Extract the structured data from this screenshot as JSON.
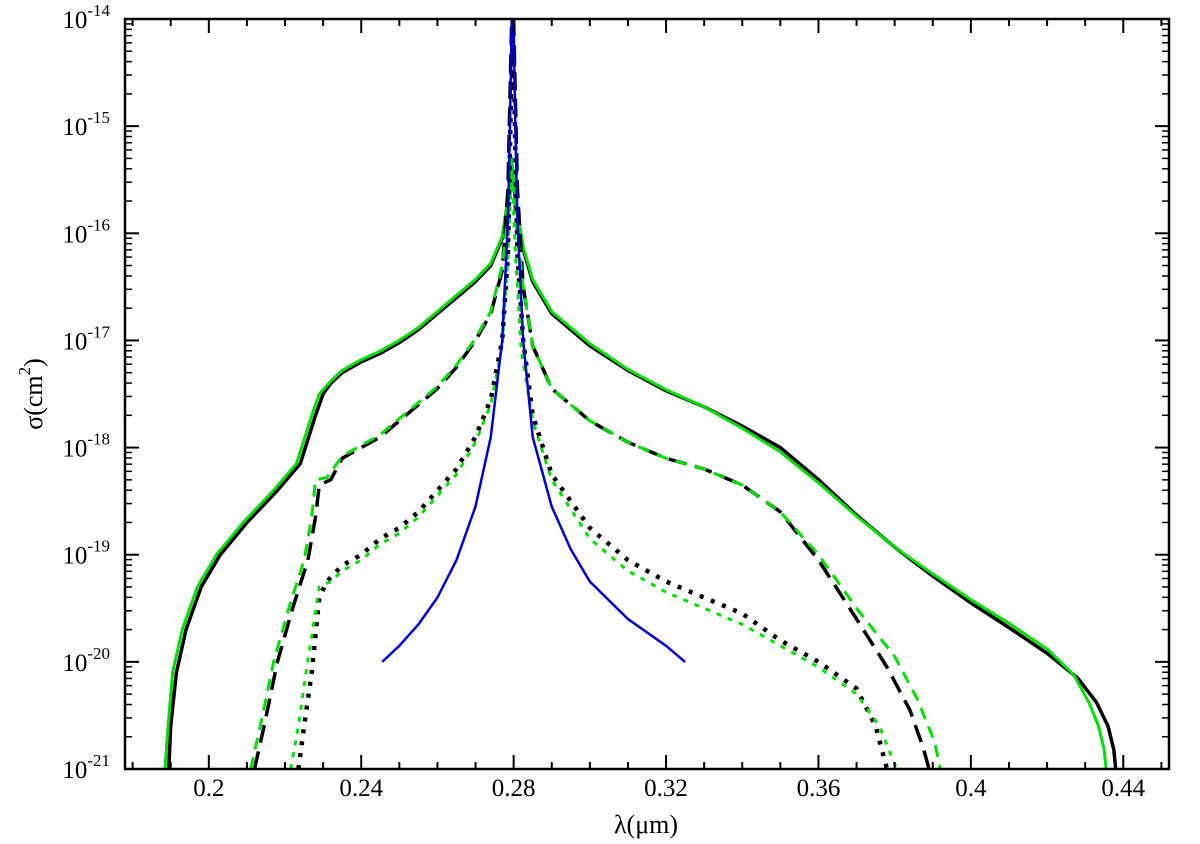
{
  "chart_data": {
    "type": "line",
    "xlabel": "λ(μm)",
    "ylabel": {
      "base": "σ(cm",
      "sup": "2",
      "tail": ")"
    },
    "xlim": [
      0.178,
      0.452
    ],
    "ylim": [
      -21,
      -14
    ],
    "yscale": "log",
    "x_ticks": [
      {
        "value": 0.2,
        "label": "0.2"
      },
      {
        "value": 0.24,
        "label": "0.24"
      },
      {
        "value": 0.28,
        "label": "0.28"
      },
      {
        "value": 0.32,
        "label": "0.32"
      },
      {
        "value": 0.36,
        "label": "0.36"
      },
      {
        "value": 0.4,
        "label": "0.4"
      },
      {
        "value": 0.44,
        "label": "0.44"
      }
    ],
    "y_ticks": [
      {
        "value": -14,
        "base": "10",
        "exp": "-14"
      },
      {
        "value": -15,
        "base": "10",
        "exp": "-15"
      },
      {
        "value": -16,
        "base": "10",
        "exp": "-16"
      },
      {
        "value": -17,
        "base": "10",
        "exp": "-17"
      },
      {
        "value": -18,
        "base": "10",
        "exp": "-18"
      },
      {
        "value": -19,
        "base": "10",
        "exp": "-19"
      },
      {
        "value": -20,
        "base": "10",
        "exp": "-20"
      },
      {
        "value": -21,
        "base": "10",
        "exp": "-21"
      }
    ],
    "grid": false,
    "series": [
      {
        "color": "#000000",
        "dash": "solid",
        "width": 3.5,
        "points": [
          [
            0.1895,
            -21
          ],
          [
            0.19,
            -20.6
          ],
          [
            0.1915,
            -20.1
          ],
          [
            0.194,
            -19.7
          ],
          [
            0.198,
            -19.3
          ],
          [
            0.203,
            -19.0
          ],
          [
            0.21,
            -18.7
          ],
          [
            0.218,
            -18.4
          ],
          [
            0.224,
            -18.15
          ],
          [
            0.228,
            -17.7
          ],
          [
            0.23,
            -17.5
          ],
          [
            0.232,
            -17.4
          ],
          [
            0.235,
            -17.3
          ],
          [
            0.24,
            -17.2
          ],
          [
            0.245,
            -17.12
          ],
          [
            0.25,
            -17.02
          ],
          [
            0.255,
            -16.9
          ],
          [
            0.26,
            -16.75
          ],
          [
            0.265,
            -16.6
          ],
          [
            0.27,
            -16.45
          ],
          [
            0.274,
            -16.3
          ],
          [
            0.277,
            -16.05
          ],
          [
            0.2785,
            -15.7
          ],
          [
            0.2795,
            -15.35
          ],
          [
            0.2805,
            -15.7
          ],
          [
            0.2825,
            -16.15
          ],
          [
            0.285,
            -16.45
          ],
          [
            0.29,
            -16.75
          ],
          [
            0.3,
            -17.05
          ],
          [
            0.31,
            -17.28
          ],
          [
            0.32,
            -17.47
          ],
          [
            0.33,
            -17.62
          ],
          [
            0.34,
            -17.8
          ],
          [
            0.35,
            -18.0
          ],
          [
            0.36,
            -18.3
          ],
          [
            0.37,
            -18.63
          ],
          [
            0.38,
            -18.93
          ],
          [
            0.39,
            -19.2
          ],
          [
            0.4,
            -19.45
          ],
          [
            0.41,
            -19.68
          ],
          [
            0.42,
            -19.92
          ],
          [
            0.428,
            -20.15
          ],
          [
            0.433,
            -20.38
          ],
          [
            0.436,
            -20.6
          ],
          [
            0.4375,
            -20.82
          ],
          [
            0.438,
            -21
          ]
        ]
      },
      {
        "color": "#00dd00",
        "dash": "solid",
        "width": 3,
        "points": [
          [
            0.1885,
            -21
          ],
          [
            0.1893,
            -20.6
          ],
          [
            0.1905,
            -20.1
          ],
          [
            0.193,
            -19.7
          ],
          [
            0.197,
            -19.3
          ],
          [
            0.202,
            -19.0
          ],
          [
            0.209,
            -18.7
          ],
          [
            0.217,
            -18.4
          ],
          [
            0.223,
            -18.15
          ],
          [
            0.227,
            -17.7
          ],
          [
            0.229,
            -17.5
          ],
          [
            0.232,
            -17.38
          ],
          [
            0.235,
            -17.28
          ],
          [
            0.24,
            -17.18
          ],
          [
            0.245,
            -17.1
          ],
          [
            0.25,
            -17.0
          ],
          [
            0.255,
            -16.88
          ],
          [
            0.26,
            -16.73
          ],
          [
            0.265,
            -16.58
          ],
          [
            0.27,
            -16.43
          ],
          [
            0.274,
            -16.28
          ],
          [
            0.277,
            -16.03
          ],
          [
            0.2785,
            -15.7
          ],
          [
            0.2795,
            -15.3
          ],
          [
            0.2805,
            -15.68
          ],
          [
            0.2825,
            -16.13
          ],
          [
            0.285,
            -16.43
          ],
          [
            0.29,
            -16.73
          ],
          [
            0.3,
            -17.03
          ],
          [
            0.31,
            -17.27
          ],
          [
            0.32,
            -17.46
          ],
          [
            0.33,
            -17.62
          ],
          [
            0.34,
            -17.82
          ],
          [
            0.35,
            -18.04
          ],
          [
            0.36,
            -18.33
          ],
          [
            0.37,
            -18.64
          ],
          [
            0.38,
            -18.93
          ],
          [
            0.39,
            -19.18
          ],
          [
            0.4,
            -19.42
          ],
          [
            0.41,
            -19.64
          ],
          [
            0.42,
            -19.88
          ],
          [
            0.427,
            -20.12
          ],
          [
            0.431,
            -20.38
          ],
          [
            0.4335,
            -20.6
          ],
          [
            0.435,
            -20.82
          ],
          [
            0.4355,
            -21
          ]
        ]
      },
      {
        "color": "#000000",
        "dash": "18,9",
        "width": 3.5,
        "points": [
          [
            0.212,
            -21
          ],
          [
            0.2145,
            -20.6
          ],
          [
            0.218,
            -20.0
          ],
          [
            0.222,
            -19.5
          ],
          [
            0.226,
            -19.05
          ],
          [
            0.228,
            -18.65
          ],
          [
            0.229,
            -18.35
          ],
          [
            0.232,
            -18.3
          ],
          [
            0.235,
            -18.1
          ],
          [
            0.24,
            -18.0
          ],
          [
            0.245,
            -17.9
          ],
          [
            0.25,
            -17.75
          ],
          [
            0.255,
            -17.6
          ],
          [
            0.26,
            -17.45
          ],
          [
            0.265,
            -17.25
          ],
          [
            0.27,
            -17.0
          ],
          [
            0.274,
            -16.75
          ],
          [
            0.277,
            -16.35
          ],
          [
            0.2785,
            -15.6
          ],
          [
            0.279,
            -14.8
          ],
          [
            0.2795,
            -14.0
          ],
          [
            0.28,
            -14.0
          ],
          [
            0.2805,
            -14.8
          ],
          [
            0.281,
            -15.6
          ],
          [
            0.2825,
            -16.5
          ],
          [
            0.285,
            -17.05
          ],
          [
            0.29,
            -17.45
          ],
          [
            0.3,
            -17.75
          ],
          [
            0.31,
            -17.95
          ],
          [
            0.32,
            -18.1
          ],
          [
            0.33,
            -18.2
          ],
          [
            0.34,
            -18.35
          ],
          [
            0.35,
            -18.6
          ],
          [
            0.36,
            -19.05
          ],
          [
            0.37,
            -19.6
          ],
          [
            0.378,
            -20.05
          ],
          [
            0.384,
            -20.45
          ],
          [
            0.3875,
            -20.8
          ],
          [
            0.389,
            -21
          ]
        ]
      },
      {
        "color": "#00dd00",
        "dash": "12,8",
        "width": 3,
        "points": [
          [
            0.211,
            -21
          ],
          [
            0.2135,
            -20.6
          ],
          [
            0.217,
            -20.0
          ],
          [
            0.221,
            -19.5
          ],
          [
            0.225,
            -19.05
          ],
          [
            0.227,
            -18.65
          ],
          [
            0.228,
            -18.3
          ],
          [
            0.231,
            -18.28
          ],
          [
            0.235,
            -18.08
          ],
          [
            0.24,
            -17.98
          ],
          [
            0.245,
            -17.88
          ],
          [
            0.25,
            -17.73
          ],
          [
            0.255,
            -17.58
          ],
          [
            0.26,
            -17.43
          ],
          [
            0.265,
            -17.23
          ],
          [
            0.27,
            -16.98
          ],
          [
            0.274,
            -16.73
          ],
          [
            0.277,
            -16.3
          ],
          [
            0.2785,
            -15.85
          ],
          [
            0.2795,
            -15.4
          ],
          [
            0.2805,
            -15.85
          ],
          [
            0.2825,
            -16.5
          ],
          [
            0.285,
            -17.05
          ],
          [
            0.29,
            -17.45
          ],
          [
            0.3,
            -17.75
          ],
          [
            0.31,
            -17.95
          ],
          [
            0.32,
            -18.1
          ],
          [
            0.33,
            -18.2
          ],
          [
            0.34,
            -18.35
          ],
          [
            0.35,
            -18.6
          ],
          [
            0.36,
            -19.0
          ],
          [
            0.37,
            -19.5
          ],
          [
            0.38,
            -19.95
          ],
          [
            0.386,
            -20.35
          ],
          [
            0.3905,
            -20.75
          ],
          [
            0.392,
            -21
          ]
        ]
      },
      {
        "color": "#000000",
        "dash": "4,8",
        "width": 4.5,
        "points": [
          [
            0.2235,
            -21
          ],
          [
            0.225,
            -20.6
          ],
          [
            0.227,
            -20.1
          ],
          [
            0.229,
            -19.4
          ],
          [
            0.231,
            -19.25
          ],
          [
            0.235,
            -19.1
          ],
          [
            0.24,
            -19.0
          ],
          [
            0.245,
            -18.85
          ],
          [
            0.25,
            -18.75
          ],
          [
            0.255,
            -18.6
          ],
          [
            0.26,
            -18.4
          ],
          [
            0.265,
            -18.2
          ],
          [
            0.27,
            -17.9
          ],
          [
            0.274,
            -17.55
          ],
          [
            0.277,
            -17.0
          ],
          [
            0.2785,
            -16.2
          ],
          [
            0.279,
            -15.3
          ],
          [
            0.2795,
            -14.3
          ],
          [
            0.28,
            -14.3
          ],
          [
            0.2805,
            -15.3
          ],
          [
            0.281,
            -16.2
          ],
          [
            0.2825,
            -17.0
          ],
          [
            0.285,
            -17.7
          ],
          [
            0.29,
            -18.25
          ],
          [
            0.3,
            -18.75
          ],
          [
            0.31,
            -19.05
          ],
          [
            0.32,
            -19.25
          ],
          [
            0.33,
            -19.4
          ],
          [
            0.34,
            -19.55
          ],
          [
            0.35,
            -19.8
          ],
          [
            0.36,
            -20.0
          ],
          [
            0.37,
            -20.25
          ],
          [
            0.375,
            -20.6
          ],
          [
            0.378,
            -21
          ]
        ]
      },
      {
        "color": "#00dd00",
        "dash": "5,7",
        "width": 3,
        "points": [
          [
            0.2215,
            -21
          ],
          [
            0.2235,
            -20.6
          ],
          [
            0.2255,
            -20.1
          ],
          [
            0.2275,
            -19.65
          ],
          [
            0.229,
            -19.3
          ],
          [
            0.232,
            -19.25
          ],
          [
            0.235,
            -19.15
          ],
          [
            0.24,
            -19.05
          ],
          [
            0.245,
            -18.9
          ],
          [
            0.25,
            -18.8
          ],
          [
            0.255,
            -18.65
          ],
          [
            0.26,
            -18.45
          ],
          [
            0.265,
            -18.25
          ],
          [
            0.27,
            -17.95
          ],
          [
            0.274,
            -17.6
          ],
          [
            0.277,
            -17.05
          ],
          [
            0.2785,
            -16.2
          ],
          [
            0.2795,
            -15.4
          ],
          [
            0.2805,
            -16.2
          ],
          [
            0.282,
            -17.1
          ],
          [
            0.285,
            -17.75
          ],
          [
            0.29,
            -18.3
          ],
          [
            0.3,
            -18.85
          ],
          [
            0.31,
            -19.15
          ],
          [
            0.32,
            -19.35
          ],
          [
            0.33,
            -19.5
          ],
          [
            0.34,
            -19.65
          ],
          [
            0.35,
            -19.85
          ],
          [
            0.36,
            -20.05
          ],
          [
            0.37,
            -20.3
          ],
          [
            0.376,
            -20.6
          ],
          [
            0.3805,
            -21
          ]
        ]
      },
      {
        "color": "#0000cc",
        "dash": "solid",
        "width": 2.5,
        "points": [
          [
            0.2455,
            -20.0
          ],
          [
            0.25,
            -19.85
          ],
          [
            0.255,
            -19.65
          ],
          [
            0.26,
            -19.4
          ],
          [
            0.265,
            -19.05
          ],
          [
            0.27,
            -18.55
          ],
          [
            0.274,
            -17.9
          ],
          [
            0.277,
            -17.0
          ],
          [
            0.2785,
            -15.9
          ],
          [
            0.279,
            -15.1
          ],
          [
            0.2795,
            -14.0
          ],
          [
            0.28,
            -14.0
          ],
          [
            0.2805,
            -15.1
          ],
          [
            0.281,
            -15.9
          ],
          [
            0.2825,
            -17.0
          ],
          [
            0.285,
            -17.9
          ],
          [
            0.29,
            -18.55
          ],
          [
            0.295,
            -18.95
          ],
          [
            0.3,
            -19.25
          ],
          [
            0.31,
            -19.6
          ],
          [
            0.32,
            -19.85
          ],
          [
            0.325,
            -20.0
          ]
        ]
      }
    ]
  }
}
